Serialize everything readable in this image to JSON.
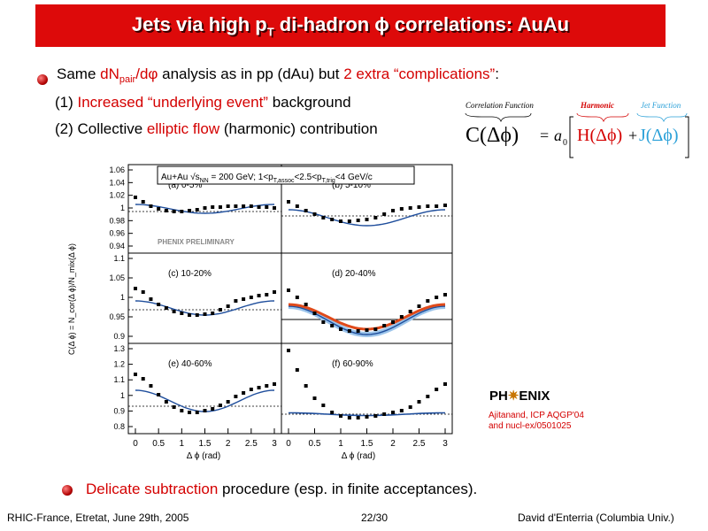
{
  "title": {
    "main": "Jets via high p",
    "sub": "T",
    "rest": " di-hadron ϕ correlations: AuAu"
  },
  "bullet1": {
    "pre": "Same ",
    "red1": "dN",
    "red1_sub": "pair",
    "red1_post": "/dφ",
    "mid": " analysis as in pp (dAu) but ",
    "red2": "2 extra “complications”",
    "post": ":"
  },
  "item1": {
    "pre": "(1) ",
    "red": "Increased “underlying event”",
    "post": " background"
  },
  "item2": {
    "pre": "(2) Collective ",
    "red": "elliptic flow",
    "post": " (harmonic) contribution"
  },
  "equation": {
    "corr_label": "Correlation Function",
    "harm_label": "Harmonic",
    "jet_label": "Jet Function",
    "lhs": "C(Δϕ)",
    "eq": "=",
    "a0": "a",
    "a0_sub": "0",
    "h": "H(Δϕ)",
    "plus": "+",
    "j": "J(Δϕ)"
  },
  "plot": {
    "header": "Au+Au √s",
    "header_sub": "NN",
    "header_rest": " = 200 GeV;  1<p",
    "header_cut": "T,assoc",
    "header_rest2": "<2.5<p",
    "header_cut2": "T,trig",
    "header_rest3": "<4 GeV/c",
    "preliminary": "PHENIX PRELIMINARY",
    "ylabel": "C(Δ ϕ) = N_cor(Δ ϕ)/N_mix(Δ ϕ)",
    "xlabel": "Δ ϕ (rad)",
    "xticks": [
      "0",
      "0.5",
      "1",
      "1.5",
      "2",
      "2.5",
      "3"
    ],
    "rows": [
      {
        "yticks": [
          "1.06",
          "1.04",
          "1.02",
          "1",
          "0.98",
          "0.96",
          "0.94"
        ],
        "left": "(a) 0-5%",
        "right": "(b) 5-10%"
      },
      {
        "yticks": [
          "1.1",
          "1.05",
          "1",
          "0.95",
          "0.9"
        ],
        "left": "(c) 10-20%",
        "right": "(d) 20-40%"
      },
      {
        "yticks": [
          "1.3",
          "1.2",
          "1.1",
          "1",
          "0.9",
          "0.8"
        ],
        "left": "(e) 40-60%",
        "right": "(f) 60-90%"
      }
    ]
  },
  "logo": {
    "text_a": "PH",
    "text_b": "ENIX",
    "star": "✷"
  },
  "reference": {
    "line1": "Ajitanand, ICP AQGP'04",
    "line2": "and nucl-ex/0501025"
  },
  "bullet2": {
    "red": "Delicate subtraction",
    "post": " procedure (esp. in finite acceptances)."
  },
  "footer": {
    "left": "RHIC-France, Etretat, June 29th, 2005",
    "center": "22/30",
    "right": "David d'Enterria (Columbia Univ.)"
  },
  "colors": {
    "title_bg": "#dd0a0a",
    "accent": "#d40000",
    "curve": "#1f4e9c",
    "flow": "#e04a1a"
  }
}
